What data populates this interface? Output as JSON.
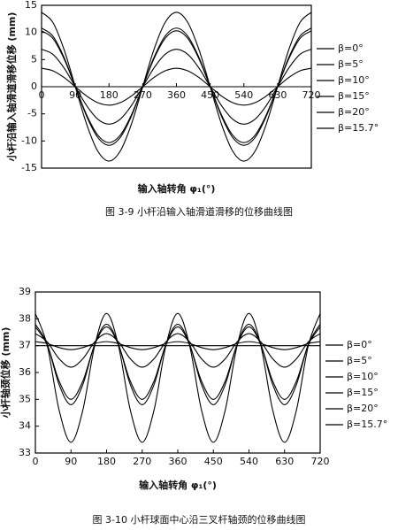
{
  "chart_data": [
    {
      "type": "line",
      "caption": "图 3-9 小杆沿输入轴滑道滑移的位移曲线图",
      "x_label": "输入轴转角 φ₁(°)",
      "y_label": "小杆沿输入轴滑道滑移位移 (mm)",
      "x": [
        0,
        30,
        60,
        90,
        120,
        150,
        180,
        210,
        240,
        270,
        300,
        330,
        360,
        390,
        420,
        450,
        480,
        510,
        540,
        570,
        600,
        630,
        660,
        690,
        720
      ],
      "xlim": [
        0,
        720
      ],
      "xticks": [
        0,
        90,
        180,
        270,
        360,
        450,
        540,
        630,
        720
      ],
      "ylim": [
        -15,
        15
      ],
      "yticks": [
        -15,
        -10,
        -5,
        0,
        5,
        10,
        15
      ],
      "series": [
        {
          "name": "β=0°",
          "color": "#000000",
          "values": [
            0,
            0,
            0,
            0,
            0,
            0,
            0,
            0,
            0,
            0,
            0,
            0,
            0,
            0,
            0,
            0,
            0,
            0,
            0,
            0,
            0,
            0,
            0,
            0,
            0
          ]
        },
        {
          "name": "β=5°",
          "color": "#000000",
          "values": [
            3.4,
            2.94,
            1.7,
            0,
            -1.7,
            -2.94,
            -3.4,
            -2.94,
            -1.7,
            0,
            1.7,
            2.94,
            3.4,
            2.94,
            1.7,
            0,
            -1.7,
            -2.94,
            -3.4,
            -2.94,
            -1.7,
            0,
            1.7,
            2.94,
            3.4
          ]
        },
        {
          "name": "β=10°",
          "color": "#000000",
          "values": [
            6.9,
            5.98,
            3.45,
            0,
            -3.45,
            -5.98,
            -6.9,
            -5.98,
            -3.45,
            0,
            3.45,
            5.98,
            6.9,
            5.98,
            3.45,
            0,
            -3.45,
            -5.98,
            -6.9,
            -5.98,
            -3.45,
            0,
            3.45,
            5.98,
            6.9
          ]
        },
        {
          "name": "β=15°",
          "color": "#000000",
          "values": [
            10.3,
            8.92,
            5.15,
            0,
            -5.15,
            -8.92,
            -10.3,
            -8.92,
            -5.15,
            0,
            5.15,
            8.92,
            10.3,
            8.92,
            5.15,
            0,
            -5.15,
            -8.92,
            -10.3,
            -8.92,
            -5.15,
            0,
            5.15,
            8.92,
            10.3
          ]
        },
        {
          "name": "β=20°",
          "color": "#000000",
          "values": [
            13.7,
            11.86,
            6.85,
            0,
            -6.85,
            -11.86,
            -13.7,
            -11.86,
            -6.85,
            0,
            6.85,
            11.86,
            13.7,
            11.86,
            6.85,
            0,
            -6.85,
            -11.86,
            -13.7,
            -11.86,
            -6.85,
            0,
            6.85,
            11.86,
            13.7
          ]
        },
        {
          "name": "β=15.7°",
          "color": "#000000",
          "values": [
            10.8,
            9.35,
            5.4,
            0,
            -5.4,
            -9.35,
            -10.8,
            -9.35,
            -5.4,
            0,
            5.4,
            9.35,
            10.8,
            9.35,
            5.4,
            0,
            -5.4,
            -9.35,
            -10.8,
            -9.35,
            -5.4,
            0,
            5.4,
            9.35,
            10.8
          ]
        }
      ]
    },
    {
      "type": "line",
      "caption": "图 3-10 小杆球面中心沿三叉杆轴颈的位移曲线图",
      "x_label": "输入轴转角 φ₁(°)",
      "y_label": "小杆轴颈位移 (mm)",
      "x": [
        0,
        30,
        60,
        90,
        120,
        150,
        180,
        210,
        240,
        270,
        300,
        330,
        360,
        390,
        420,
        450,
        480,
        510,
        540,
        570,
        600,
        630,
        660,
        690,
        720
      ],
      "xlim": [
        0,
        720
      ],
      "xticks": [
        0,
        90,
        180,
        270,
        360,
        450,
        540,
        630,
        720
      ],
      "ylim": [
        33,
        39
      ],
      "yticks": [
        33,
        34,
        35,
        36,
        37,
        38,
        39
      ],
      "series": [
        {
          "name": "β=0°",
          "color": "#000000",
          "values": [
            37,
            37,
            37,
            37,
            37,
            37,
            37,
            37,
            37,
            37,
            37,
            37,
            37,
            37,
            37,
            37,
            37,
            37,
            37,
            37,
            37,
            37,
            37,
            37,
            37
          ]
        },
        {
          "name": "β=5°",
          "color": "#000000",
          "values": [
            37.15,
            37.08,
            36.93,
            36.85,
            36.93,
            37.08,
            37.15,
            37.08,
            36.93,
            36.85,
            36.93,
            37.08,
            37.15,
            37.08,
            36.93,
            36.85,
            36.93,
            37.08,
            37.15,
            37.08,
            36.93,
            36.85,
            36.93,
            37.08,
            37.15
          ]
        },
        {
          "name": "β=10°",
          "color": "#000000",
          "values": [
            37.45,
            37.14,
            36.51,
            36.2,
            36.51,
            37.14,
            37.45,
            37.14,
            36.51,
            36.2,
            36.51,
            37.14,
            37.45,
            37.14,
            36.51,
            36.2,
            36.51,
            37.14,
            37.45,
            37.14,
            36.51,
            36.2,
            36.51,
            37.14,
            37.45
          ]
        },
        {
          "name": "β=15°",
          "color": "#000000",
          "values": [
            37.7,
            37.03,
            35.68,
            35,
            35.68,
            37.03,
            37.7,
            37.03,
            35.68,
            35,
            35.68,
            37.03,
            37.7,
            37.03,
            35.68,
            35,
            35.68,
            37.03,
            37.7,
            37.03,
            35.68,
            35,
            35.68,
            37.03,
            37.7
          ]
        },
        {
          "name": "β=20°",
          "color": "#000000",
          "values": [
            38.2,
            37,
            34.6,
            33.4,
            34.6,
            37,
            38.2,
            37,
            34.6,
            33.4,
            34.6,
            37,
            38.2,
            37,
            34.6,
            33.4,
            34.6,
            37,
            38.2,
            37,
            34.6,
            33.4,
            34.6,
            37,
            38.2
          ]
        },
        {
          "name": "β=15.7°",
          "color": "#000000",
          "values": [
            37.8,
            37.05,
            35.55,
            34.8,
            35.55,
            37.05,
            37.8,
            37.05,
            35.55,
            34.8,
            35.55,
            37.05,
            37.8,
            37.05,
            35.55,
            34.8,
            35.55,
            37.05,
            37.8,
            37.05,
            35.55,
            34.8,
            35.55,
            37.05,
            37.8
          ]
        }
      ]
    }
  ]
}
